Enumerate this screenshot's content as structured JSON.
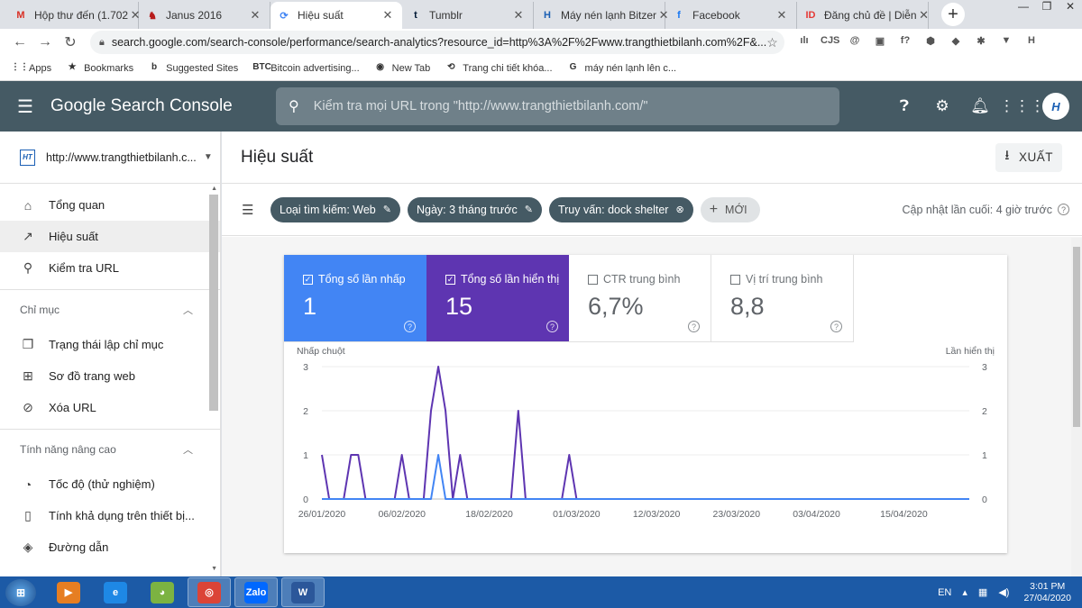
{
  "browser": {
    "tabs": [
      {
        "title": "Hộp thư đến (1.702",
        "icon": "gmail-icon",
        "glyph": "M",
        "color": "#d93025",
        "active": false
      },
      {
        "title": "Janus 2016",
        "icon": "janus-icon",
        "glyph": "♞",
        "color": "#b71c1c",
        "active": false
      },
      {
        "title": "Hiệu suất",
        "icon": "search-console-icon",
        "glyph": "⟳",
        "color": "#4285f4",
        "active": true
      },
      {
        "title": "Tumblr",
        "icon": "tumblr-icon",
        "glyph": "t",
        "color": "#001935",
        "active": false
      },
      {
        "title": "Máy nén lạnh Bitzer",
        "icon": "site-logo-icon",
        "glyph": "H",
        "color": "#1a5fb4",
        "active": false
      },
      {
        "title": "Facebook",
        "icon": "facebook-icon",
        "glyph": "f",
        "color": "#1877f2",
        "active": false
      },
      {
        "title": "Đăng chủ đề | Diễn",
        "icon": "idvs-icon",
        "glyph": "ID",
        "color": "#e53935",
        "active": false
      }
    ],
    "url": "search.google.com/search-console/performance/search-analytics?resource_id=http%3A%2F%2Fwww.trangthietbilanh.com%2F&...",
    "extensions": [
      "ılı",
      "CJS",
      "@",
      "▣",
      "f?",
      "⬢",
      "◆",
      "✱",
      "▼",
      "H"
    ],
    "bookmarks": [
      {
        "label": "Apps",
        "icon": "apps-grid-icon",
        "glyph": "⋮⋮"
      },
      {
        "label": "Bookmarks",
        "icon": "star-icon",
        "glyph": "★"
      },
      {
        "label": "Suggested Sites",
        "icon": "bing-icon",
        "glyph": "b"
      },
      {
        "label": "Bitcoin advertising...",
        "icon": "btc-icon",
        "glyph": "BTC"
      },
      {
        "label": "New Tab",
        "icon": "globe-icon",
        "glyph": "◉"
      },
      {
        "label": "Trang chi tiết khóa...",
        "icon": "course-icon",
        "glyph": "⟲"
      },
      {
        "label": "máy nén lạnh lên c...",
        "icon": "google-icon",
        "glyph": "G"
      }
    ]
  },
  "app": {
    "brand": "Google Search Console",
    "search_placeholder": "Kiểm tra mọi URL trong \"http://www.trangthietbilanh.com/\"",
    "avatar_text": "H"
  },
  "sidebar": {
    "property": "http://www.trangthietbilanh.c...",
    "items": [
      {
        "label": "Tổng quan",
        "icon": "home-icon",
        "glyph": "⌂",
        "active": false
      },
      {
        "label": "Hiệu suất",
        "icon": "trending-up-icon",
        "glyph": "↗",
        "active": true
      },
      {
        "label": "Kiểm tra URL",
        "icon": "search-icon",
        "glyph": "⚲",
        "active": false
      }
    ],
    "section1": "Chỉ mục",
    "section1_items": [
      {
        "label": "Trạng thái lập chỉ mục",
        "icon": "coverage-icon",
        "glyph": "❐"
      },
      {
        "label": "Sơ đồ trang web",
        "icon": "sitemap-icon",
        "glyph": "⊞"
      },
      {
        "label": "Xóa URL",
        "icon": "eye-off-icon",
        "glyph": "⊘"
      }
    ],
    "section2": "Tính năng nâng cao",
    "section2_items": [
      {
        "label": "Tốc độ (thử nghiệm)",
        "icon": "speed-icon",
        "glyph": "◔"
      },
      {
        "label": "Tính khả dụng trên thiết bị...",
        "icon": "mobile-icon",
        "glyph": "▯"
      },
      {
        "label": "Đường dẫn",
        "icon": "layers-icon",
        "glyph": "◈"
      }
    ]
  },
  "main": {
    "title": "Hiệu suất",
    "export_label": "XUẤT",
    "filters": [
      {
        "label": "Loại tìm kiếm: Web",
        "action": "edit"
      },
      {
        "label": "Ngày: 3 tháng trước",
        "action": "edit"
      },
      {
        "label": "Truy vấn: dock shelter",
        "action": "remove"
      }
    ],
    "new_label": "MỚI",
    "updated": "Cập nhật lần cuối: 4 giờ trước"
  },
  "metrics": [
    {
      "label": "Tổng số lần nhấp",
      "value": "1",
      "checked": true,
      "style": "blue"
    },
    {
      "label": "Tổng số lần hiển thị",
      "value": "15",
      "checked": true,
      "style": "purple"
    },
    {
      "label": "CTR trung bình",
      "value": "6,7%",
      "checked": false,
      "style": "off"
    },
    {
      "label": "Vị trí trung bình",
      "value": "8,8",
      "checked": false,
      "style": "off"
    }
  ],
  "chart_data": {
    "type": "line",
    "title": "",
    "ylabel_left": "Nhấp chuột",
    "ylabel_right": "Lần hiển thị",
    "ylim_left": [
      0,
      3
    ],
    "ylim_right": [
      0,
      3
    ],
    "yticks": [
      "0",
      "1",
      "2",
      "3"
    ],
    "xtick_labels": [
      "26/01/2020",
      "06/02/2020",
      "18/02/2020",
      "01/03/2020",
      "12/03/2020",
      "23/03/2020",
      "03/04/2020",
      "15/04/2020"
    ],
    "x_start": "26/01/2020",
    "x_end": "24/04/2020",
    "grid": true,
    "series": [
      {
        "name": "Lần hiển thị",
        "axis": "right",
        "color": "#5e35b1",
        "points": [
          [
            "26/01/2020",
            1
          ],
          [
            "27/01/2020",
            0
          ],
          [
            "29/01/2020",
            0
          ],
          [
            "30/01/2020",
            1
          ],
          [
            "31/01/2020",
            1
          ],
          [
            "01/02/2020",
            0
          ],
          [
            "05/02/2020",
            0
          ],
          [
            "06/02/2020",
            1
          ],
          [
            "07/02/2020",
            0
          ],
          [
            "09/02/2020",
            0
          ],
          [
            "10/02/2020",
            2
          ],
          [
            "11/02/2020",
            3
          ],
          [
            "12/02/2020",
            2
          ],
          [
            "13/02/2020",
            0
          ],
          [
            "14/02/2020",
            1
          ],
          [
            "15/02/2020",
            0
          ],
          [
            "21/02/2020",
            0
          ],
          [
            "22/02/2020",
            2
          ],
          [
            "23/02/2020",
            0
          ],
          [
            "28/02/2020",
            0
          ],
          [
            "29/02/2020",
            1
          ],
          [
            "01/03/2020",
            0
          ],
          [
            "24/04/2020",
            0
          ]
        ]
      },
      {
        "name": "Nhấp chuột",
        "axis": "left",
        "color": "#4285f4",
        "points": [
          [
            "26/01/2020",
            0
          ],
          [
            "10/02/2020",
            0
          ],
          [
            "11/02/2020",
            1
          ],
          [
            "12/02/2020",
            0
          ],
          [
            "24/04/2020",
            0
          ]
        ]
      }
    ]
  },
  "taskbar": {
    "apps": [
      {
        "name": "taskbar-media-player",
        "icon": "media-player-icon",
        "glyph": "▶",
        "bg": "#e67e22",
        "on": false
      },
      {
        "name": "taskbar-ie",
        "icon": "ie-icon",
        "glyph": "e",
        "bg": "#1e88e5",
        "on": false
      },
      {
        "name": "taskbar-app-green",
        "icon": "green-app-icon",
        "glyph": "◕",
        "bg": "#7cb342",
        "on": false
      },
      {
        "name": "taskbar-chrome",
        "icon": "chrome-icon",
        "glyph": "◎",
        "bg": "#db4437",
        "on": true
      },
      {
        "name": "taskbar-zalo",
        "icon": "zalo-icon",
        "glyph": "Zalo",
        "bg": "#0068ff",
        "on": true
      },
      {
        "name": "taskbar-word",
        "icon": "word-icon",
        "glyph": "W",
        "bg": "#2b579a",
        "on": true
      }
    ],
    "lang": "EN",
    "time": "3:01 PM",
    "date": "27/04/2020"
  }
}
